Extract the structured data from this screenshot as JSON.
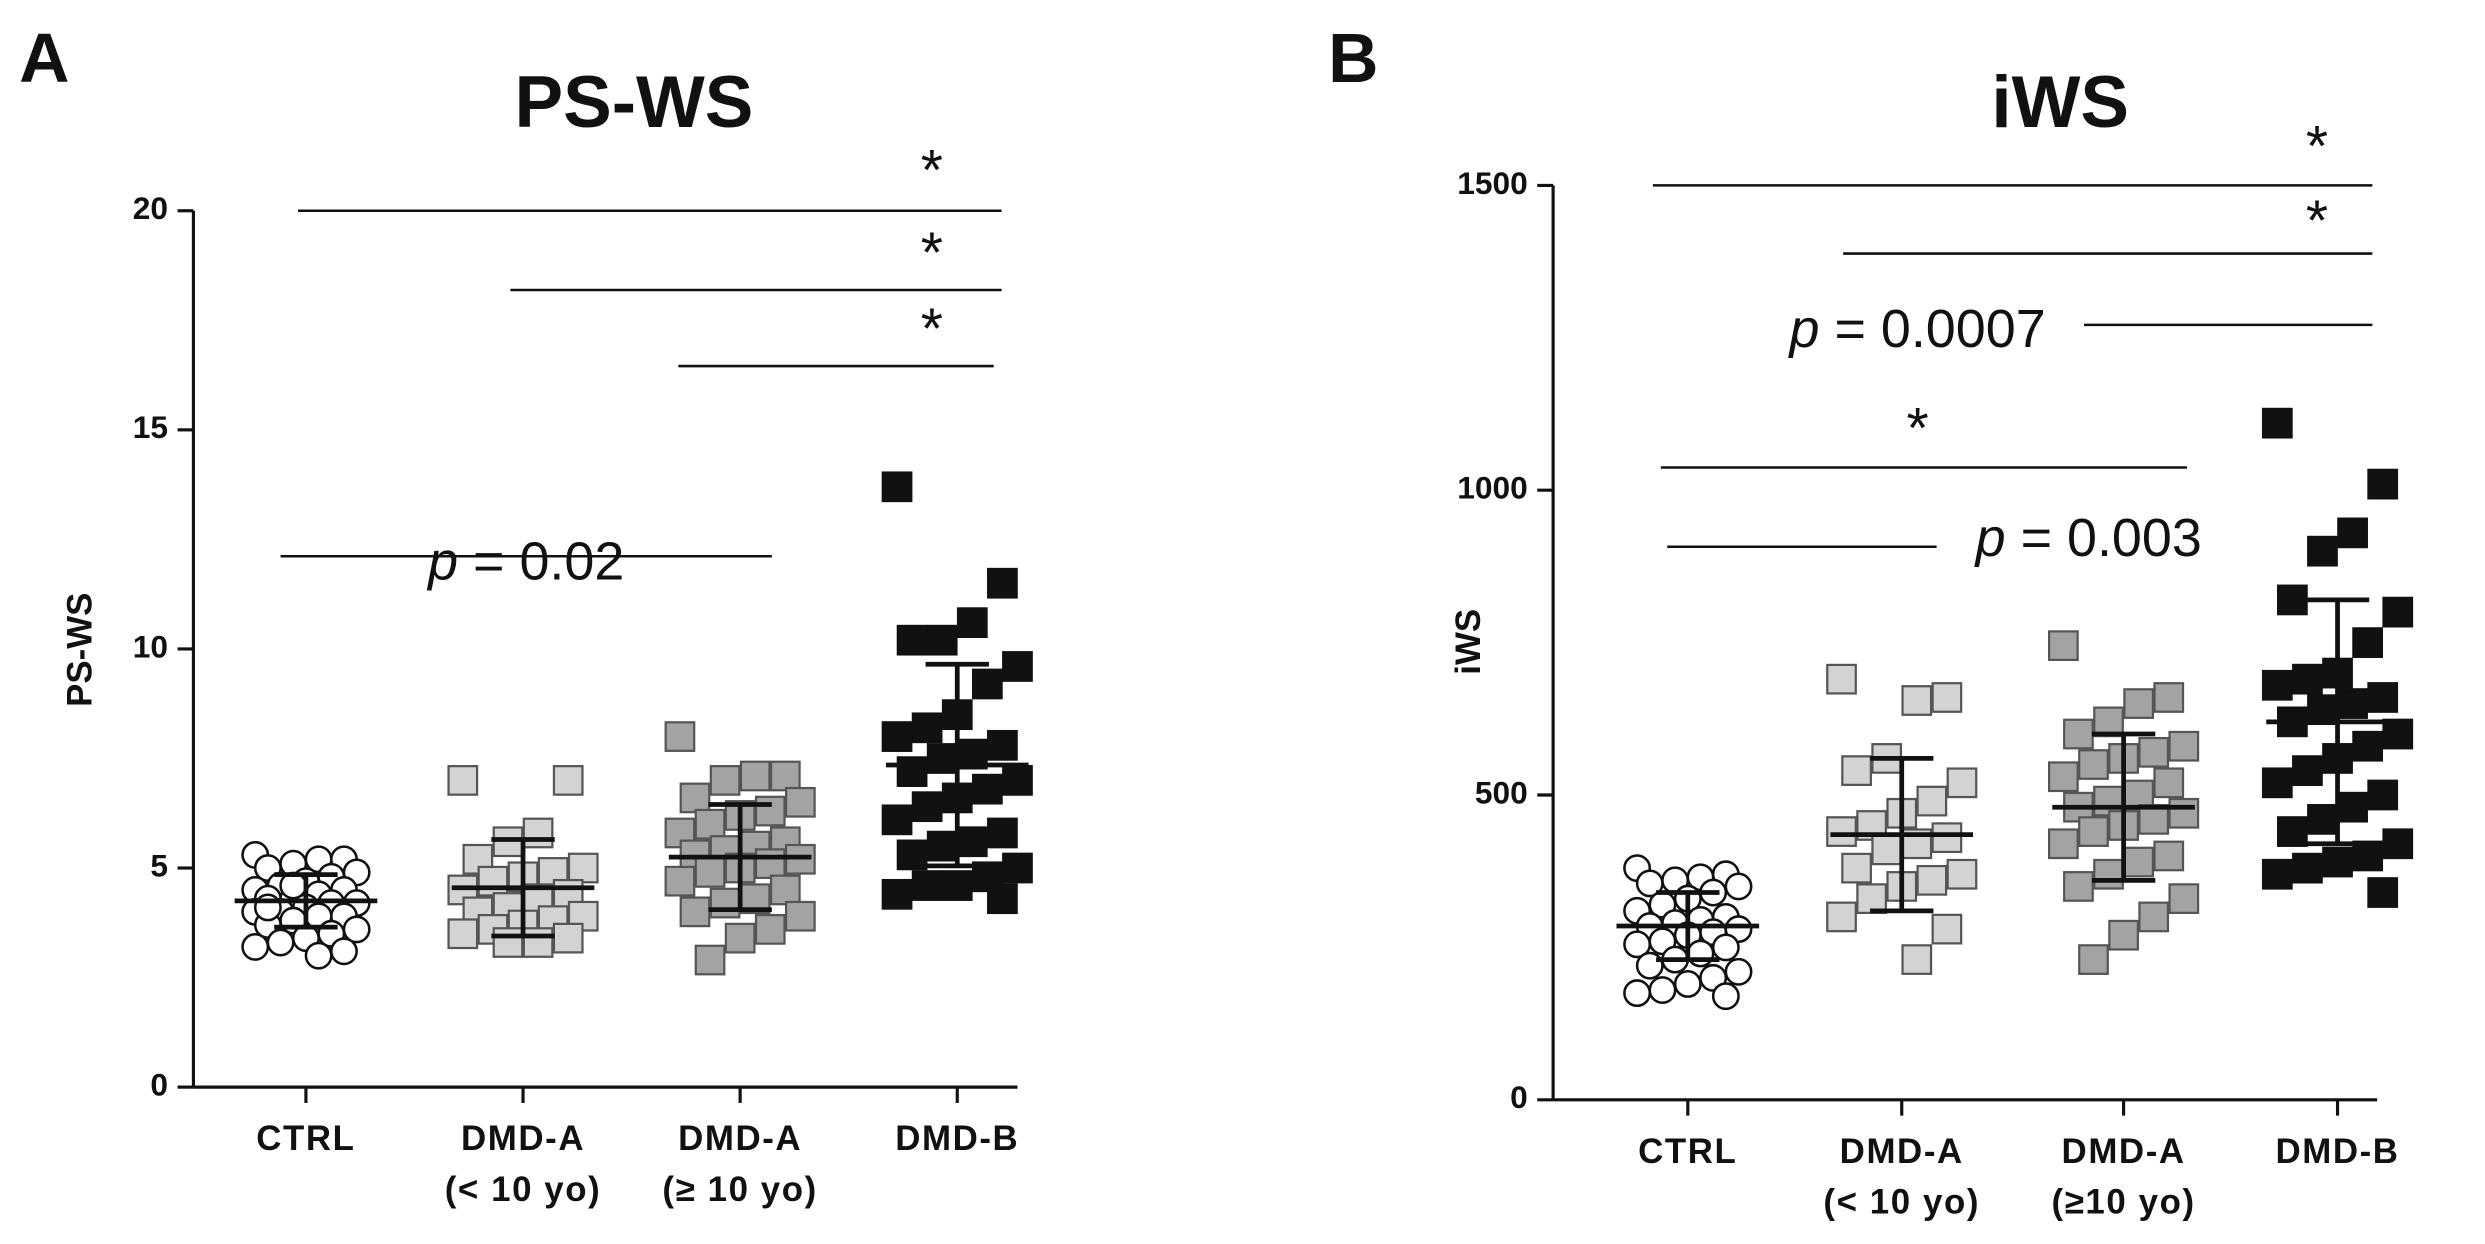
{
  "chart_data": [
    {
      "type": "dotplot",
      "panel": "A",
      "title": "PS-WS",
      "ylabel": "PS-WS",
      "categories": [
        [
          "CTRL"
        ],
        [
          "DMD-A",
          "(< 10 yo)"
        ],
        [
          "DMD-A",
          "(≥ 10 yo)"
        ],
        [
          "DMD-B"
        ]
      ],
      "colors": [
        "#ffffff",
        "#d3d3d3",
        "#a3a3a3",
        "#111111"
      ],
      "markers": [
        "circle",
        "square",
        "square",
        "square"
      ],
      "values": [
        [
          5.3,
          5.2,
          5.2,
          5.1,
          5.0,
          4.9,
          4.8,
          4.7,
          4.6,
          4.5,
          4.5,
          4.4,
          4.3,
          4.3,
          4.2,
          4.2,
          4.1,
          4.0,
          4.0,
          3.9,
          3.9,
          3.8,
          3.7,
          3.6,
          3.5,
          3.4,
          3.3,
          3.2,
          3.1,
          3.0,
          4.6,
          4.1
        ],
        [
          7.0,
          7.0,
          5.8,
          5.6,
          5.2,
          5.0,
          4.9,
          4.8,
          4.7,
          4.5,
          4.4,
          4.3,
          4.1,
          4.0,
          3.9,
          3.8,
          3.7,
          3.6,
          3.5,
          3.4,
          3.3,
          3.3
        ],
        [
          8.0,
          7.1,
          7.1,
          7.0,
          6.6,
          6.5,
          6.3,
          6.2,
          6.0,
          5.8,
          5.6,
          5.5,
          5.4,
          5.3,
          5.2,
          5.1,
          5.0,
          4.9,
          4.7,
          4.5,
          4.3,
          4.2,
          4.0,
          3.9,
          3.6,
          3.4,
          2.9
        ],
        [
          13.7,
          11.5,
          10.6,
          10.2,
          10.2,
          9.6,
          9.2,
          8.5,
          8.2,
          8.0,
          7.8,
          7.6,
          7.5,
          7.2,
          7.0,
          6.8,
          6.6,
          6.4,
          6.1,
          5.8,
          5.6,
          5.5,
          5.3,
          5.0,
          4.8,
          4.6,
          4.6,
          4.4,
          4.3
        ]
      ],
      "means": [
        4.25,
        4.55,
        5.25,
        7.35
      ],
      "sds": [
        0.6,
        1.1,
        1.2,
        2.3
      ],
      "ylim": [
        0,
        20
      ],
      "yticks": [
        0,
        5,
        10,
        15,
        20
      ],
      "comparisons": [
        {
          "groups": [
            0,
            3
          ],
          "label": "*"
        },
        {
          "groups": [
            1,
            3
          ],
          "label": "*"
        },
        {
          "groups": [
            2,
            3
          ],
          "label": "*"
        },
        {
          "groups": [
            0,
            2
          ],
          "label": "p = 0.02"
        }
      ]
    },
    {
      "type": "dotplot",
      "panel": "B",
      "title": "iWS",
      "ylabel": "iWS",
      "categories": [
        [
          "CTRL"
        ],
        [
          "DMD-A",
          "(< 10 yo)"
        ],
        [
          "DMD-A",
          "(≥10 yo)"
        ],
        [
          "DMD-B"
        ]
      ],
      "colors": [
        "#ffffff",
        "#d3d3d3",
        "#a3a3a3",
        "#111111"
      ],
      "markers": [
        "circle",
        "square",
        "square",
        "square"
      ],
      "values": [
        [
          380,
          370,
          365,
          360,
          355,
          350,
          340,
          330,
          320,
          310,
          300,
          295,
          290,
          285,
          280,
          275,
          270,
          260,
          255,
          250,
          240,
          230,
          220,
          210,
          200,
          190,
          180,
          175,
          170
        ],
        [
          690,
          660,
          655,
          560,
          540,
          520,
          490,
          470,
          450,
          440,
          430,
          420,
          410,
          380,
          370,
          360,
          350,
          330,
          300,
          280,
          230
        ],
        [
          745,
          660,
          650,
          620,
          600,
          580,
          570,
          560,
          550,
          530,
          520,
          500,
          490,
          480,
          470,
          460,
          450,
          440,
          420,
          400,
          390,
          370,
          350,
          330,
          300,
          270,
          230
        ],
        [
          1110,
          1010,
          930,
          900,
          820,
          800,
          750,
          700,
          690,
          680,
          660,
          650,
          640,
          620,
          600,
          580,
          560,
          540,
          520,
          500,
          480,
          460,
          440,
          420,
          400,
          390,
          380,
          370,
          340
        ]
      ],
      "means": [
        285,
        435,
        480,
        620
      ],
      "sds": [
        55,
        125,
        120,
        200
      ],
      "ylim": [
        0,
        1500
      ],
      "yticks": [
        0,
        500,
        1000,
        1500
      ],
      "comparisons": [
        {
          "groups": [
            0,
            3
          ],
          "label": "*"
        },
        {
          "groups": [
            1,
            3
          ],
          "label": "*"
        },
        {
          "groups": [
            0,
            3
          ],
          "label": "p = 0.0007"
        },
        {
          "groups": [
            0,
            2
          ],
          "label": "*"
        },
        {
          "groups": [
            0,
            1
          ],
          "label": "p = 0.003"
        }
      ]
    }
  ]
}
